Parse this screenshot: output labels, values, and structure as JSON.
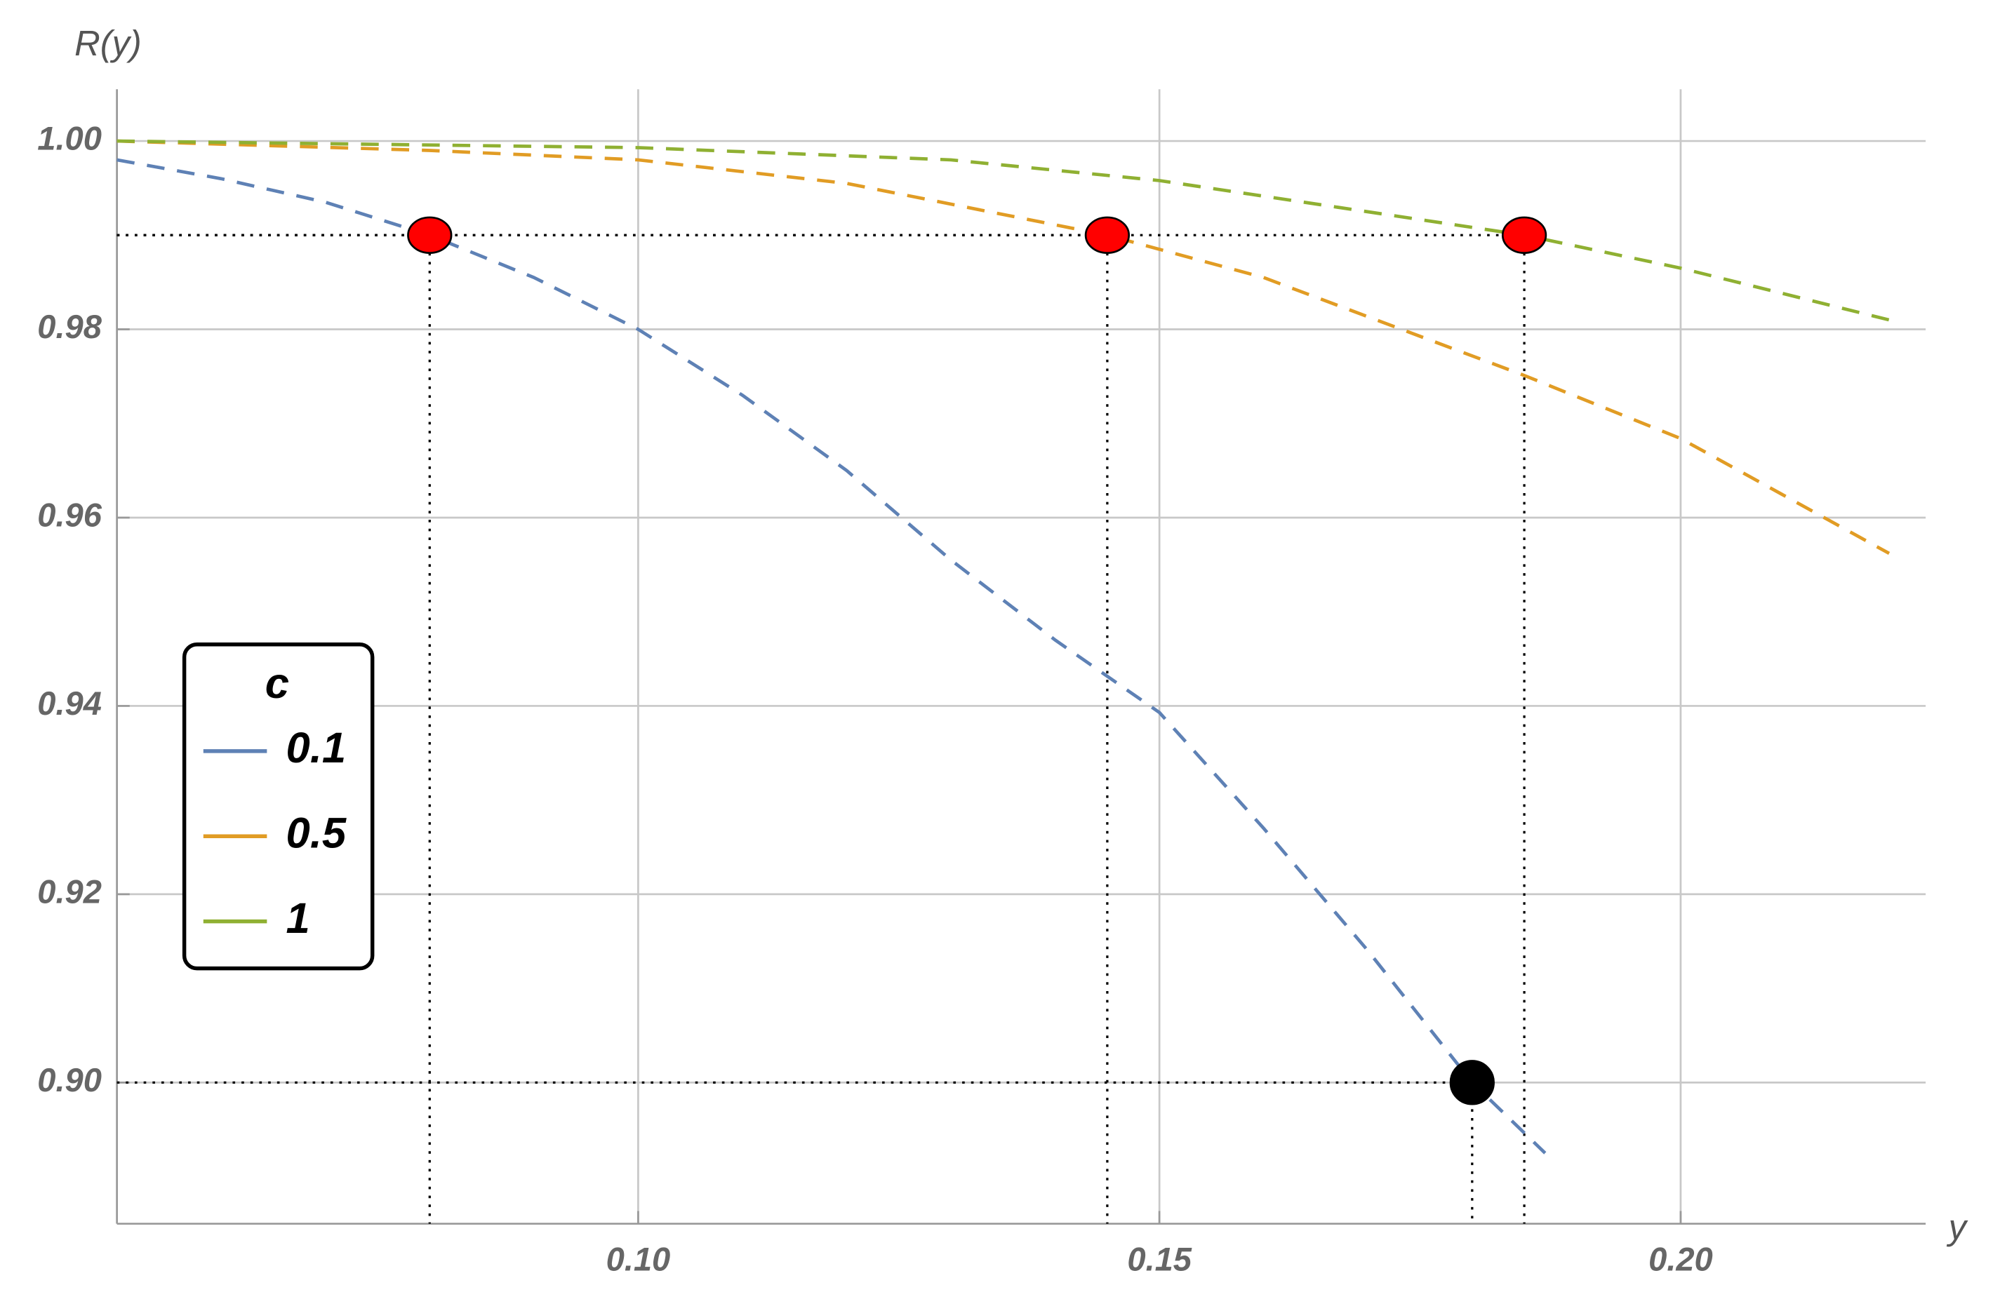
{
  "chart_data": {
    "type": "line",
    "y_label": "R(y)",
    "x_label": "y",
    "xlim": [
      0.05,
      0.2235
    ],
    "ylim": [
      0.885,
      1.0055
    ],
    "xticks": [
      {
        "value": 0.1,
        "label": "0.10"
      },
      0.15,
      {
        "value": 0.2,
        "label": "0.20"
      }
    ],
    "yticks": [
      {
        "value": 0.9,
        "label": "0.90"
      },
      0.92,
      0.94,
      0.96,
      0.98,
      {
        "value": 1.0,
        "label": "1.00"
      }
    ],
    "grid": true,
    "legend_title": "c",
    "legend": "left",
    "series": [
      {
        "name": "0.1",
        "color": "#5e81b5",
        "x": [
          0.05,
          0.06,
          0.07,
          0.08,
          0.09,
          0.1,
          0.11,
          0.12,
          0.13,
          0.14,
          0.15,
          0.16,
          0.17,
          0.18,
          0.187
        ],
        "values": [
          0.998,
          0.996,
          0.9935,
          0.99,
          0.9855,
          0.98,
          0.973,
          0.965,
          0.9555,
          0.947,
          0.9393,
          0.927,
          0.914,
          0.9,
          0.8925
        ]
      },
      {
        "name": "0.5",
        "color": "#e19c24",
        "x": [
          0.05,
          0.08,
          0.1,
          0.12,
          0.145,
          0.16,
          0.185,
          0.2,
          0.22
        ],
        "values": [
          1.0,
          0.999,
          0.998,
          0.9955,
          0.99,
          0.9855,
          0.9751,
          0.9684,
          0.9562
        ]
      },
      {
        "name": "1",
        "color": "#8fb032",
        "x": [
          0.05,
          0.1,
          0.13,
          0.15,
          0.185,
          0.2,
          0.22
        ],
        "values": [
          1.0,
          0.9993,
          0.998,
          0.9958,
          0.99,
          0.9865,
          0.981
        ]
      }
    ],
    "markers": [
      {
        "x": 0.08,
        "y": 0.99,
        "color": "#ff0000"
      },
      {
        "x": 0.145,
        "y": 0.99,
        "color": "#ff0000"
      },
      {
        "x": 0.185,
        "y": 0.99,
        "color": "#ff0000"
      },
      {
        "x": 0.18,
        "y": 0.9,
        "color": "#000000"
      }
    ]
  }
}
